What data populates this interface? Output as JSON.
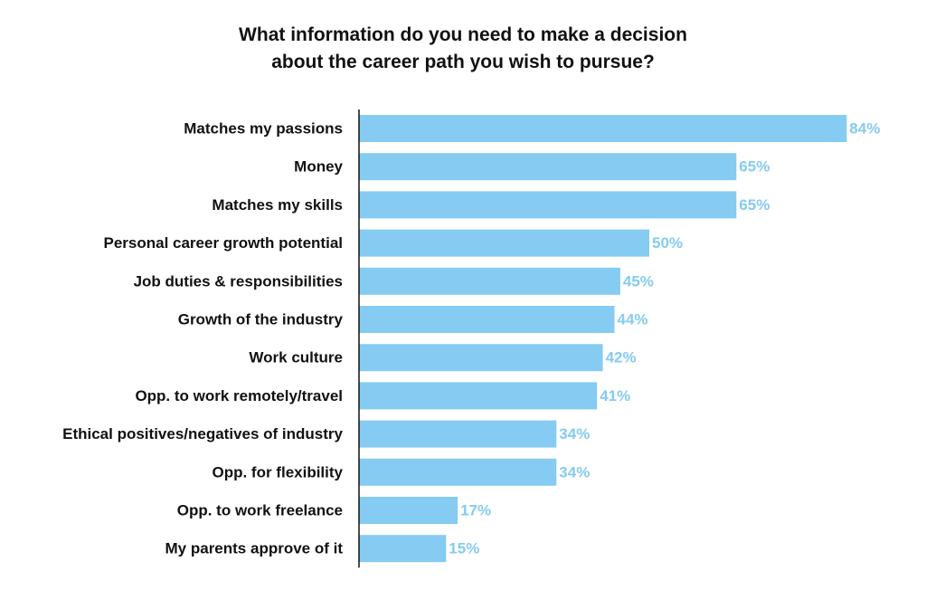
{
  "chart_data": {
    "type": "bar",
    "orientation": "horizontal",
    "title_lines": [
      "What information do you need to make a decision",
      "about the career path you wish to pursue?"
    ],
    "categories": [
      "Matches my passions",
      "Money",
      "Matches my skills",
      "Personal career growth potential",
      "Job duties & responsibilities",
      "Growth of the industry",
      "Work culture",
      "Opp. to work remotely/travel",
      "Ethical positives/negatives of industry",
      "Opp. for flexibility",
      "Opp. to work freelance",
      "My parents approve of it"
    ],
    "values": [
      84,
      65,
      65,
      50,
      45,
      44,
      42,
      41,
      34,
      34,
      17,
      15
    ],
    "value_labels": [
      "84%",
      "65%",
      "65%",
      "50%",
      "45%",
      "44%",
      "42%",
      "41%",
      "34%",
      "34%",
      "17%",
      "15%"
    ],
    "unit": "%",
    "xlim": [
      0,
      100
    ],
    "grid": false,
    "legend": "none",
    "colors": {
      "bar": "#85CBF2",
      "value_label": "#85CBF2",
      "axis": "#111111",
      "category_label": "#111111"
    }
  }
}
